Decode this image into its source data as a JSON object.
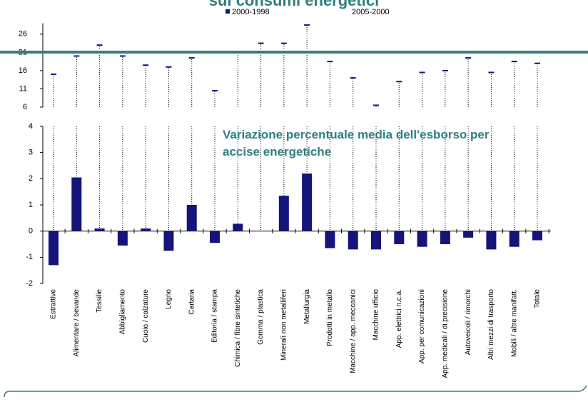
{
  "chart_data": {
    "type": "bar",
    "title": "sui consumi energetici",
    "annotation": "Variazione percentuale media dell'esborso per accise energetiche",
    "categories": [
      "Estrattive",
      "Alimentare / bevande",
      "Tessilie",
      "Abbigliamento",
      "Cuoio / calzature",
      "Legno",
      "Cartaria",
      "Editoria / stampa",
      "Chimica / fibre sintetiche",
      "Gomma / plastica",
      "Minerali non metalliferi",
      "Metallurgia",
      "Prodotti in metallo",
      "Macchine / app. meccanici",
      "Macchine ufficio",
      "App. elettrici n.c.a.",
      "App. per comunicazioni",
      "App. medicali / di precisione",
      "Autoveicoli / rimorchi",
      "Altri mezzi di trasporto",
      "Mobili / altre manifatt.",
      "Totale"
    ],
    "series": [
      {
        "name": "2000-1998",
        "color": "#14147a",
        "values": [
          -1.3,
          2.05,
          0.1,
          -0.55,
          0.1,
          -0.75,
          1.0,
          -0.45,
          0.28,
          0,
          1.35,
          2.2,
          -0.65,
          -0.7,
          -0.7,
          -0.5,
          -0.6,
          -0.5,
          -0.25,
          -0.7,
          -0.6,
          -0.35
        ]
      },
      {
        "name": "2005-2000",
        "color": "#14147a",
        "axis": "y2",
        "values": [
          15,
          20,
          23,
          20,
          17.5,
          17,
          19.5,
          10.5,
          21,
          23.5,
          23.5,
          28.5,
          18.5,
          14,
          6.5,
          13,
          15.5,
          16,
          19.5,
          15.5,
          18.5,
          18
        ]
      }
    ],
    "ylim": [
      -2,
      4
    ],
    "yticks": [
      -2,
      -1,
      0,
      1,
      2,
      3,
      4
    ],
    "y2lim": [
      6,
      29
    ],
    "y2ticks": [
      6,
      11,
      16,
      21,
      26
    ]
  }
}
